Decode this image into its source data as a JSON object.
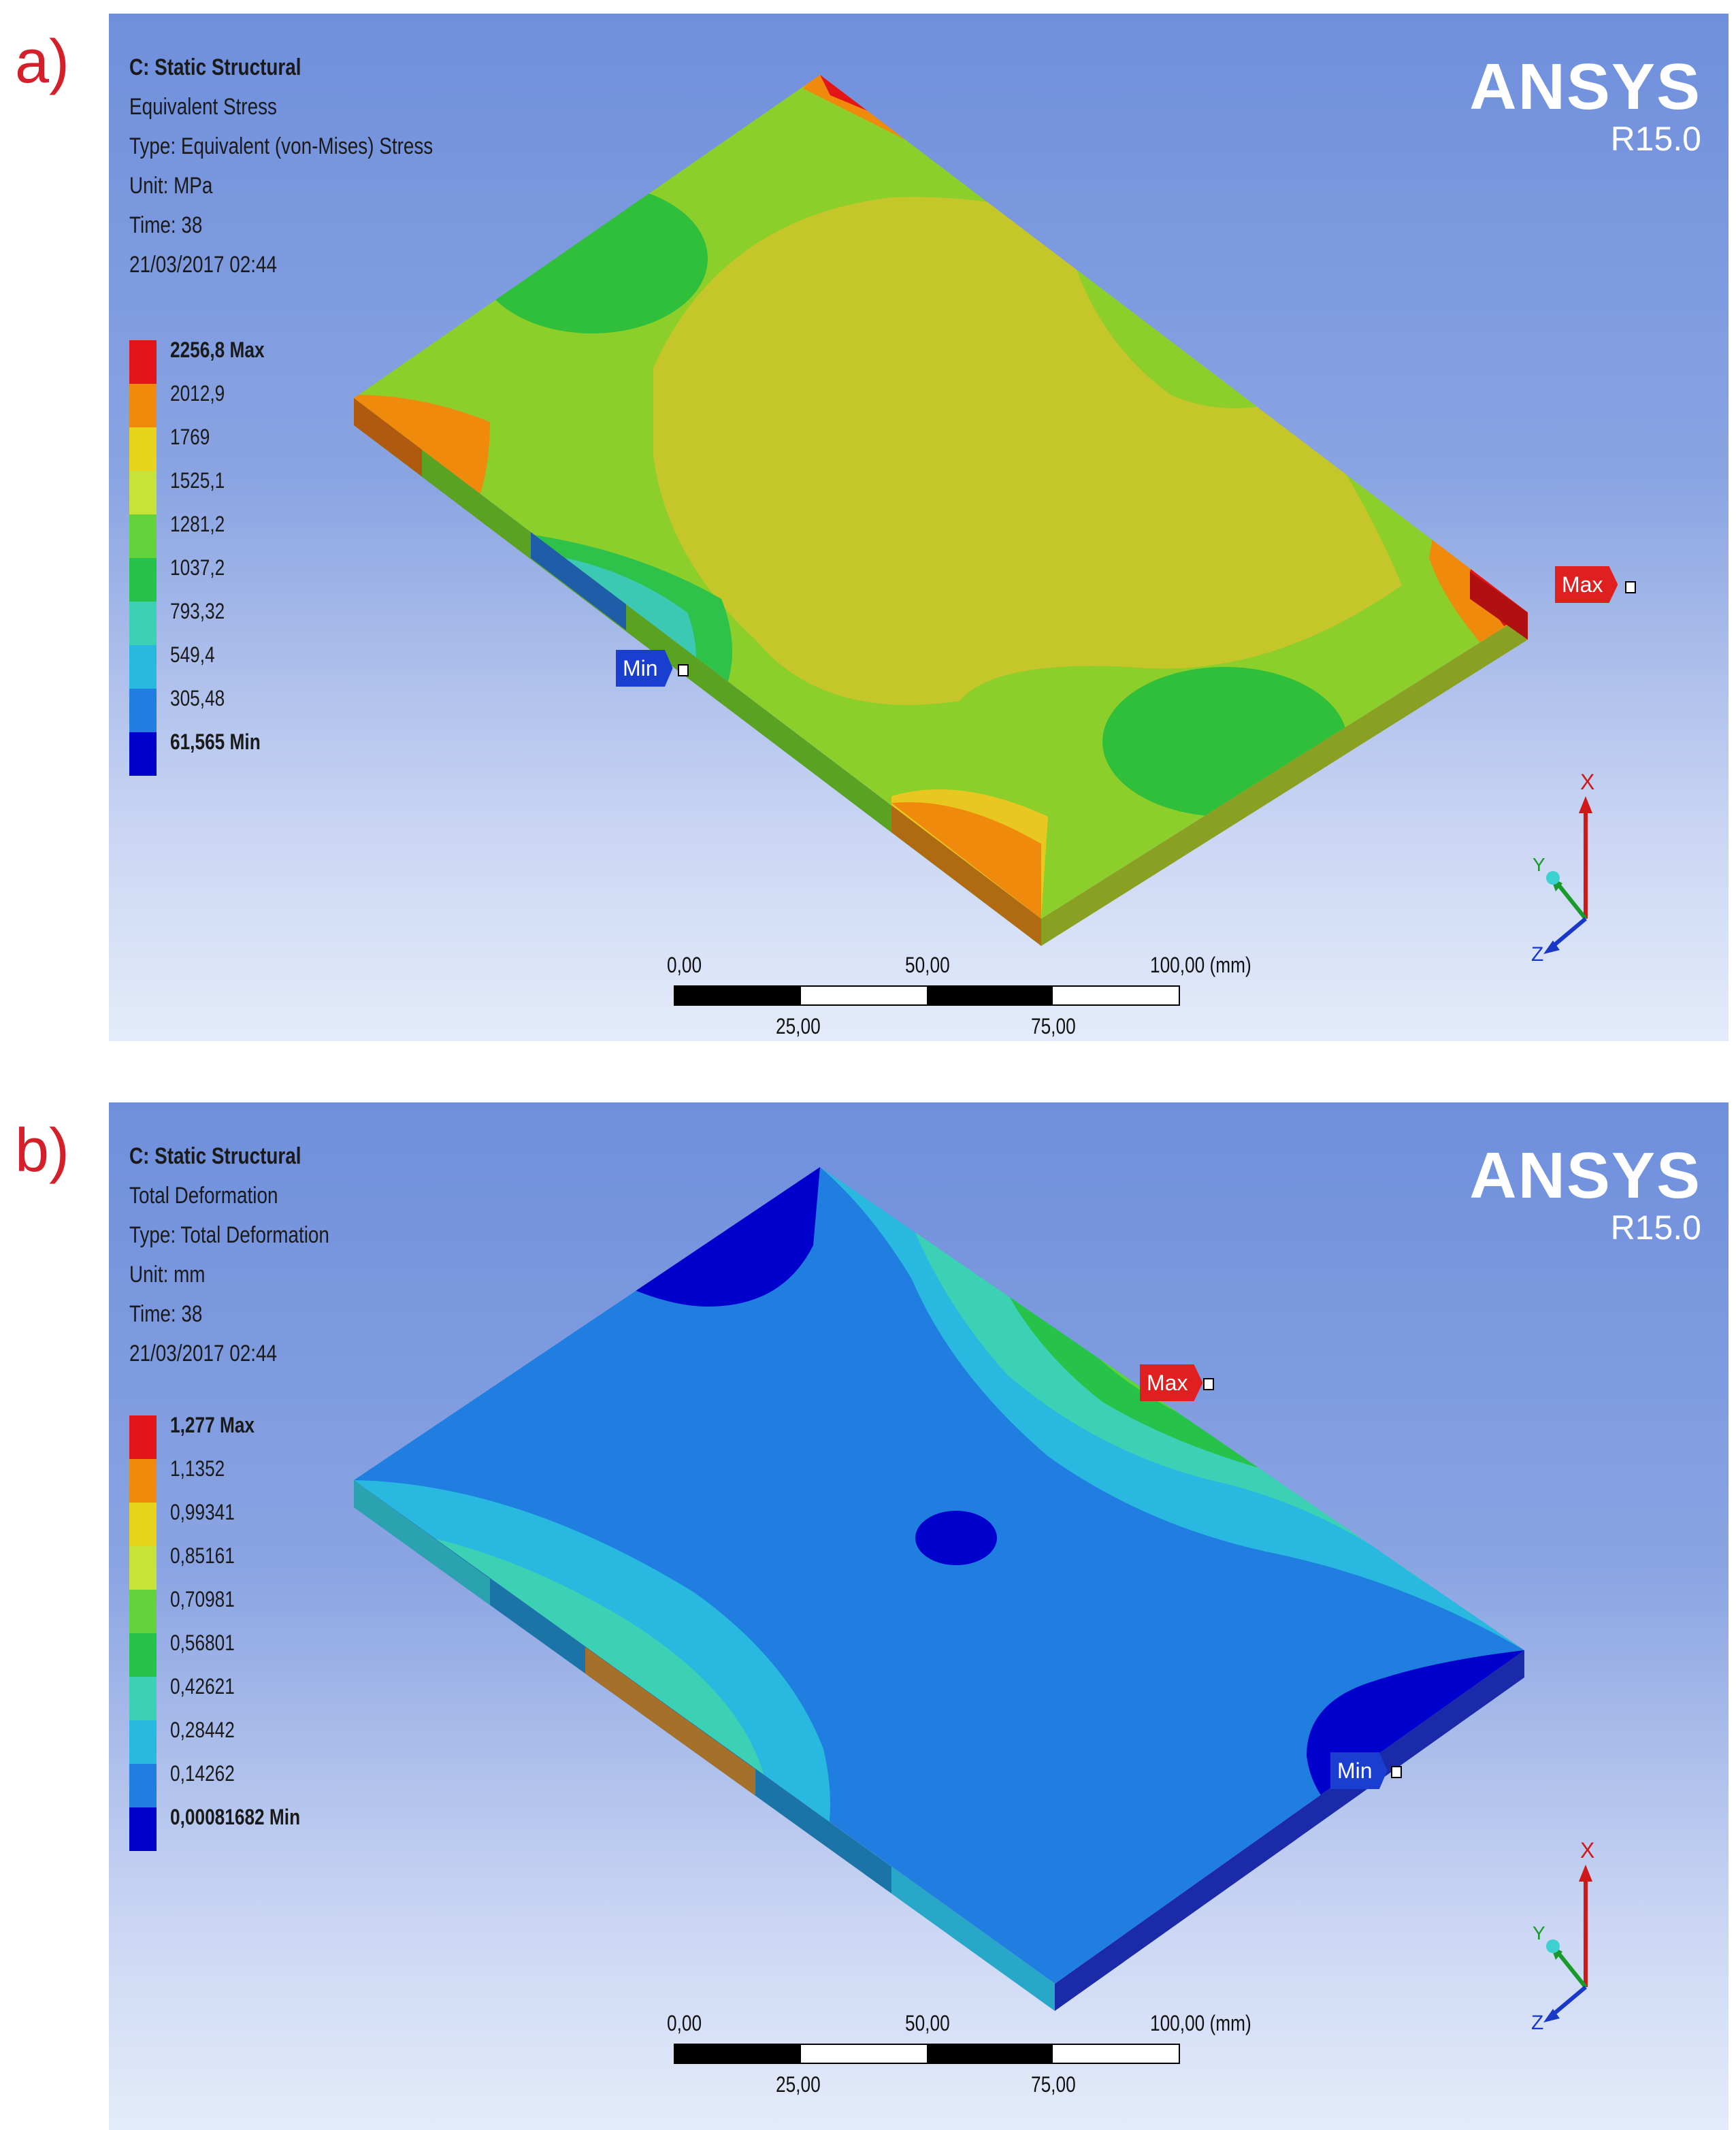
{
  "figure_labels": [
    "a)",
    "b)"
  ],
  "brand": {
    "name": "ANSYS",
    "version": "R15.0"
  },
  "panel_a": {
    "analysis": "C: Static Structural",
    "result_name": "Equivalent Stress",
    "type": "Type: Equivalent (von-Mises) Stress",
    "unit": "Unit: MPa",
    "time": "Time: 38",
    "date": "21/03/2017 02:44",
    "legend": [
      "2256,8 Max",
      "2012,9",
      "1769",
      "1525,1",
      "1281,2",
      "1037,2",
      "793,32",
      "549,4",
      "305,48",
      "61,565 Min"
    ],
    "probe_max": "Max",
    "probe_min": "Min"
  },
  "panel_b": {
    "analysis": "C: Static Structural",
    "result_name": "Total Deformation",
    "type": "Type: Total Deformation",
    "unit": "Unit: mm",
    "time": "Time: 38",
    "date": "21/03/2017 02:44",
    "legend": [
      "1,277 Max",
      "1,1352",
      "0,99341",
      "0,85161",
      "0,70981",
      "0,56801",
      "0,42621",
      "0,28442",
      "0,14262",
      "0,00081682 Min"
    ],
    "probe_max": "Max",
    "probe_min": "Min"
  },
  "scale": {
    "l0": "0,00",
    "l25": "25,00",
    "l50": "50,00",
    "l75": "75,00",
    "l100": "100,00 (mm)"
  },
  "triad": {
    "x": "X",
    "y": "Y",
    "z": "Z"
  },
  "legend_colors": [
    "#e3151b",
    "#f08a0c",
    "#e8d41a",
    "#c7e33a",
    "#62d33b",
    "#27c24a",
    "#3cd0b4",
    "#28b8e0",
    "#1f7ee0",
    "#0000cc"
  ],
  "colors": {
    "probe_max": "#e02020",
    "probe_min": "#1a3fd0",
    "label_red": "#d3202a"
  }
}
